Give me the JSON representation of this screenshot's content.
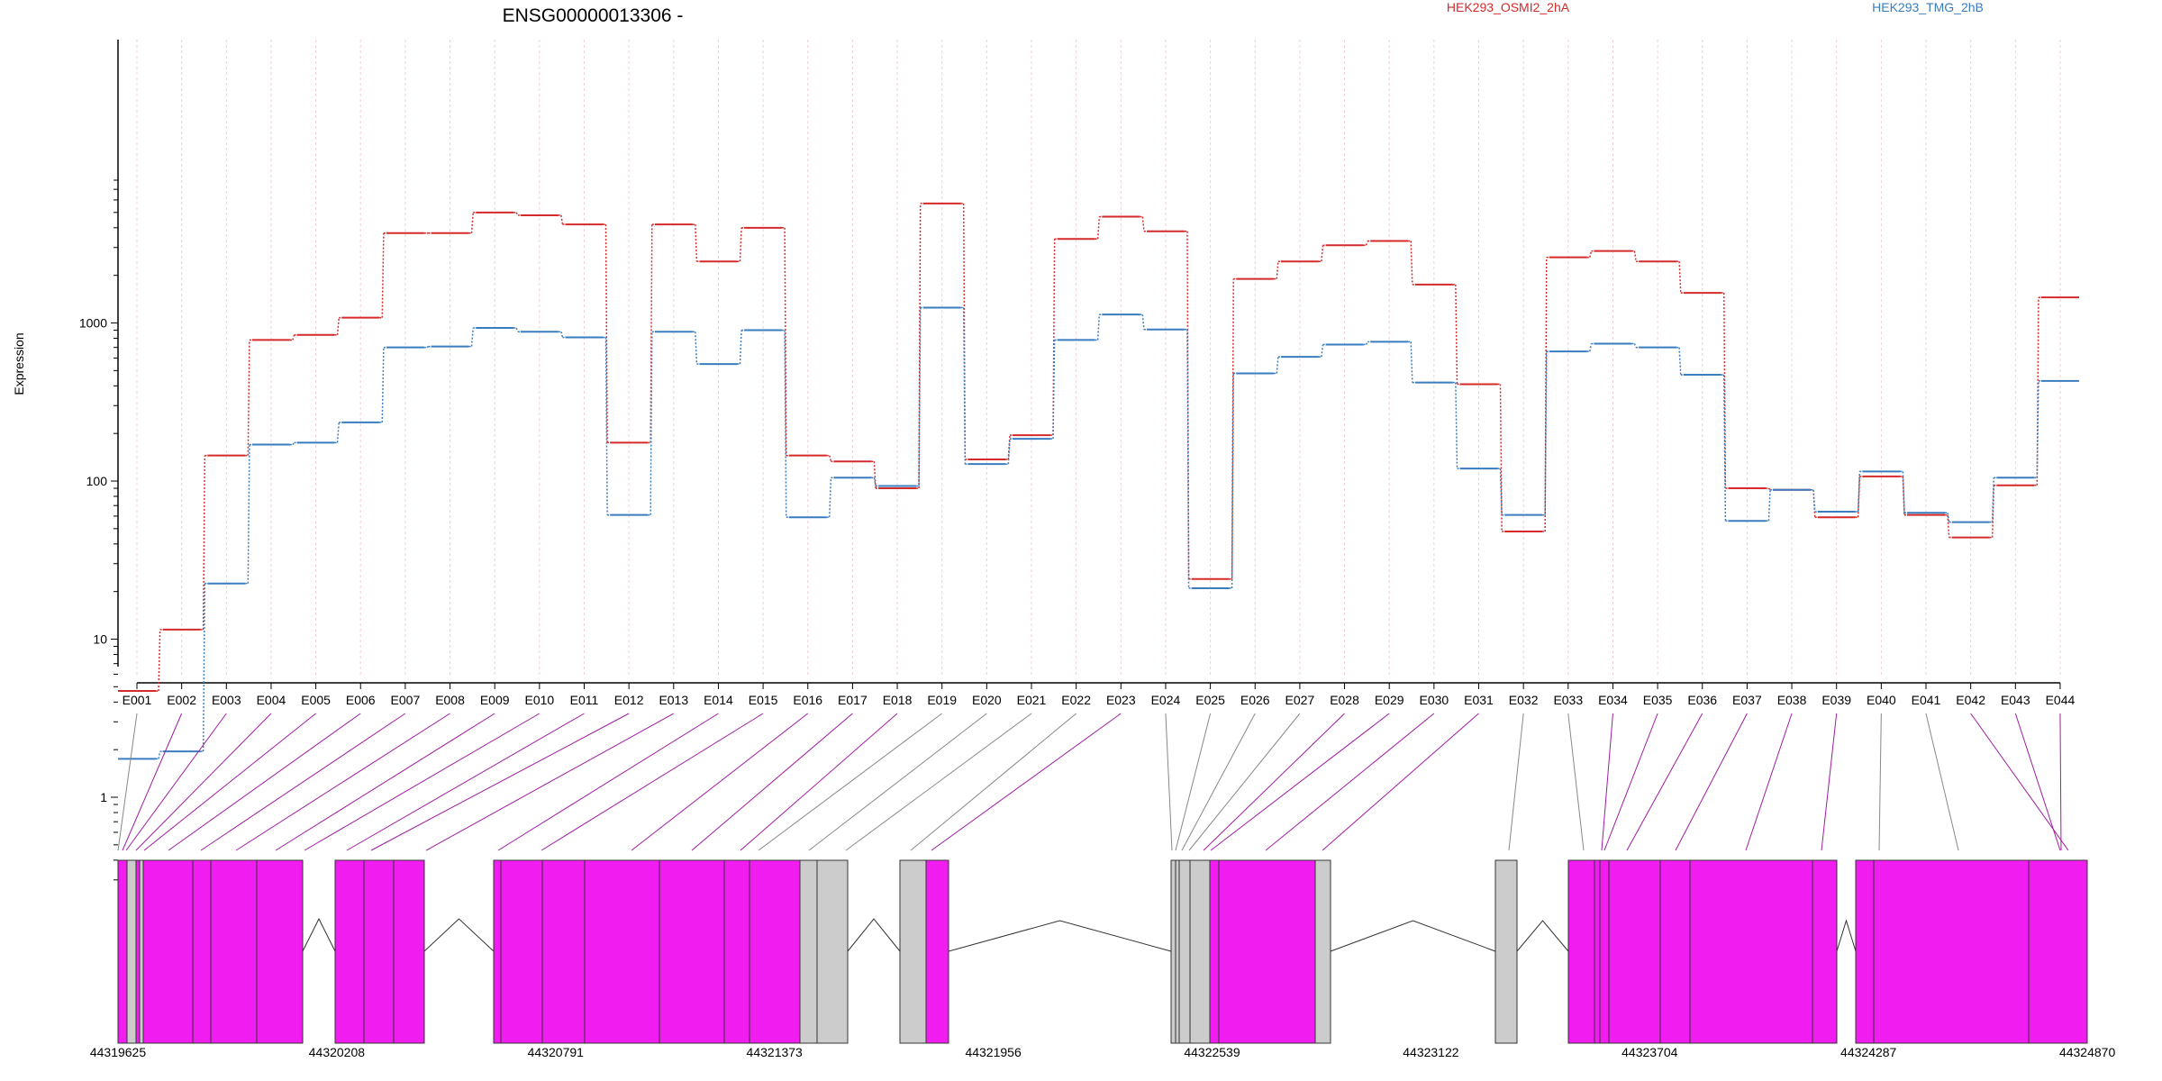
{
  "chart_data": {
    "type": "line",
    "title": "ENSG00000013306 -",
    "ylabel": "Expression",
    "yscale": "log",
    "ylim": [
      0.3,
      8000
    ],
    "y_ticks": [
      1,
      10,
      100,
      1000
    ],
    "y_tick_labels": [
      "1",
      "10",
      "100",
      "1000"
    ],
    "grid": "vertical dashed lines at exons",
    "legend": "top-right",
    "categories": [
      "E001",
      "E002",
      "E003",
      "E004",
      "E005",
      "E006",
      "E007",
      "E008",
      "E009",
      "E010",
      "E011",
      "E012",
      "E013",
      "E014",
      "E015",
      "E016",
      "E017",
      "E018",
      "E019",
      "E020",
      "E021",
      "E022",
      "E023",
      "E024",
      "E025",
      "E026",
      "E027",
      "E028",
      "E029",
      "E030",
      "E031",
      "E032",
      "E033",
      "E034",
      "E035",
      "E036",
      "E037",
      "E038",
      "E039",
      "E040",
      "E041",
      "E042",
      "E043",
      "E044"
    ],
    "series": [
      {
        "name": "HEK293_OSMI2_2hA",
        "color": "#d42a2a",
        "values": [
          4.7,
          11.5,
          145,
          780,
          840,
          1080,
          3700,
          3700,
          5000,
          4800,
          4200,
          175,
          4200,
          2450,
          4000,
          145,
          133,
          90,
          5700,
          137,
          195,
          3400,
          4700,
          3800,
          24,
          1900,
          2450,
          3100,
          3300,
          1750,
          410,
          48,
          2600,
          2850,
          2450,
          1550,
          90,
          88,
          59,
          107,
          61,
          44,
          94,
          1450
        ]
      },
      {
        "name": "HEK293_TMG_2hB",
        "color": "#3a7dbf",
        "values": [
          1.75,
          1.95,
          22.5,
          170,
          175,
          235,
          700,
          710,
          930,
          880,
          810,
          61,
          880,
          550,
          900,
          59,
          105,
          93,
          1250,
          128,
          185,
          780,
          1130,
          910,
          21,
          480,
          610,
          730,
          760,
          420,
          120,
          61,
          660,
          740,
          700,
          470,
          56,
          88,
          64,
          115,
          63,
          55,
          105,
          430
        ]
      }
    ],
    "gene_model": {
      "coordinate_ticks": [
        "44319625",
        "44320208",
        "44320791",
        "44321373",
        "44321956",
        "44322539",
        "44323122",
        "44323704",
        "44324287",
        "44324870"
      ],
      "colors": {
        "exon": "#f01cf0",
        "noncoding": "#cccccc",
        "connector_exon": "#a01ca0",
        "connector_other": "#888888"
      }
    }
  }
}
